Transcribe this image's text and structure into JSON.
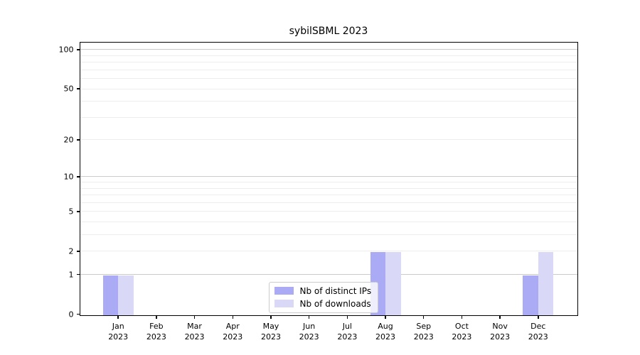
{
  "chart_data": {
    "type": "bar",
    "title": "sybilSBML 2023",
    "categories": [
      "Jan",
      "Feb",
      "Mar",
      "Apr",
      "May",
      "Jun",
      "Jul",
      "Aug",
      "Sep",
      "Oct",
      "Nov",
      "Dec"
    ],
    "year_label": "2023",
    "series": [
      {
        "name": "Nb of distinct IPs",
        "color": "#aaaaf5",
        "values": [
          1,
          0,
          0,
          0,
          0,
          0,
          0,
          2,
          0,
          0,
          0,
          1
        ]
      },
      {
        "name": "Nb of downloads",
        "color": "#d9d9f7",
        "values": [
          1,
          0,
          0,
          0,
          0,
          0,
          0,
          2,
          0,
          0,
          0,
          2
        ]
      }
    ],
    "yscale": "log1p",
    "yticks": [
      0,
      1,
      2,
      5,
      10,
      20,
      50,
      100
    ],
    "ylim": [
      0,
      114
    ],
    "xlim": [
      -1,
      12
    ],
    "grid": {
      "major_values": [
        1,
        10,
        100
      ],
      "minor_values": [
        2,
        3,
        4,
        5,
        6,
        7,
        8,
        9,
        20,
        30,
        40,
        50,
        60,
        70,
        80,
        90
      ],
      "major_color": "#cbcbcb",
      "minor_color": "#ededed"
    },
    "legend": {
      "position": "lower-center"
    }
  }
}
